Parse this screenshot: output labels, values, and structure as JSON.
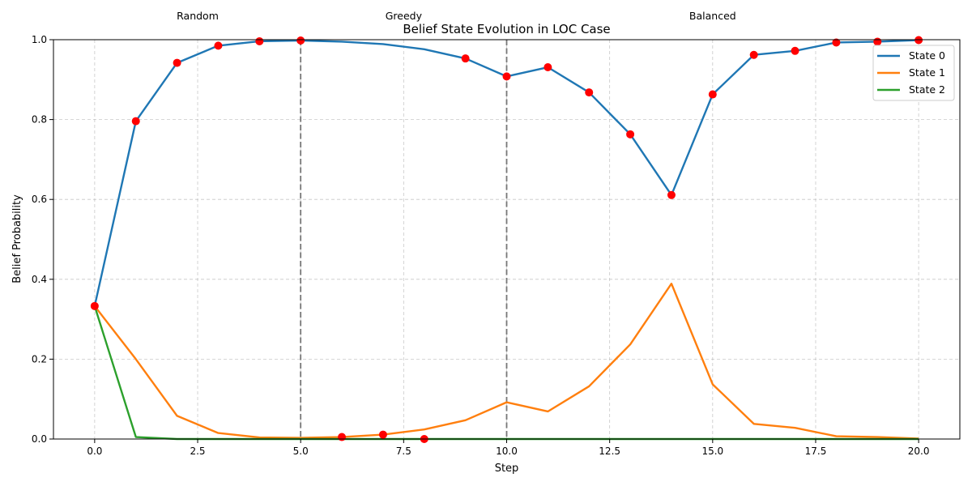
{
  "chart_data": {
    "type": "line",
    "title": "Belief State Evolution in LOC Case",
    "xlabel": "Step",
    "ylabel": "Belief Probability",
    "xlim": [
      -1,
      21
    ],
    "ylim": [
      0,
      1
    ],
    "xticks": [
      "0.0",
      "2.5",
      "5.0",
      "7.5",
      "10.0",
      "12.5",
      "15.0",
      "17.5",
      "20.0"
    ],
    "xtick_values": [
      0,
      2.5,
      5,
      7.5,
      10,
      12.5,
      15,
      17.5,
      20
    ],
    "yticks": [
      "0.0",
      "0.2",
      "0.4",
      "0.6",
      "0.8",
      "1.0"
    ],
    "ytick_values": [
      0,
      0.2,
      0.4,
      0.6,
      0.8,
      1.0
    ],
    "grid": true,
    "legend_position": "top-right",
    "x": [
      0,
      1,
      2,
      3,
      4,
      5,
      6,
      7,
      8,
      9,
      10,
      11,
      12,
      13,
      14,
      15,
      16,
      17,
      18,
      19,
      20
    ],
    "series": [
      {
        "name": "State 0",
        "color": "#1f77b4",
        "values": [
          0.333,
          0.796,
          0.942,
          0.985,
          0.996,
          0.998,
          0.995,
          0.989,
          0.976,
          0.953,
          0.908,
          0.931,
          0.868,
          0.763,
          0.611,
          0.863,
          0.962,
          0.972,
          0.993,
          0.995,
          0.999
        ]
      },
      {
        "name": "State 1",
        "color": "#ff7f0e",
        "values": [
          0.333,
          0.2,
          0.058,
          0.015,
          0.004,
          0.003,
          0.005,
          0.011,
          0.024,
          0.047,
          0.092,
          0.069,
          0.132,
          0.237,
          0.389,
          0.137,
          0.038,
          0.028,
          0.007,
          0.005,
          0.001
        ]
      },
      {
        "name": "State 2",
        "color": "#2ca02c",
        "values": [
          0.333,
          0.005,
          0.0,
          0.0,
          0.0,
          0.0,
          0.0,
          0.0,
          0.0,
          0.0,
          0.0,
          0.0,
          0.0,
          0.0,
          0.0,
          0.0,
          0.0,
          0.0,
          0.0,
          0.0,
          0.0
        ]
      }
    ],
    "markers": {
      "color": "#ff0000",
      "points": [
        {
          "x": 0,
          "y": 0.333
        },
        {
          "x": 1,
          "y": 0.796
        },
        {
          "x": 2,
          "y": 0.942
        },
        {
          "x": 3,
          "y": 0.985
        },
        {
          "x": 4,
          "y": 0.996
        },
        {
          "x": 5,
          "y": 0.998
        },
        {
          "x": 6,
          "y": 0.005
        },
        {
          "x": 7,
          "y": 0.011
        },
        {
          "x": 8,
          "y": 0.0
        },
        {
          "x": 9,
          "y": 0.953
        },
        {
          "x": 10,
          "y": 0.908
        },
        {
          "x": 11,
          "y": 0.931
        },
        {
          "x": 12,
          "y": 0.868
        },
        {
          "x": 13,
          "y": 0.763
        },
        {
          "x": 14,
          "y": 0.611
        },
        {
          "x": 15,
          "y": 0.863
        },
        {
          "x": 16,
          "y": 0.962
        },
        {
          "x": 17,
          "y": 0.972
        },
        {
          "x": 18,
          "y": 0.993
        },
        {
          "x": 19,
          "y": 0.995
        },
        {
          "x": 20,
          "y": 0.999
        }
      ]
    },
    "vlines": [
      5,
      10
    ],
    "phases": [
      {
        "label": "Random",
        "x": 2.5
      },
      {
        "label": "Greedy",
        "x": 7.5
      },
      {
        "label": "Balanced",
        "x": 15
      }
    ]
  }
}
